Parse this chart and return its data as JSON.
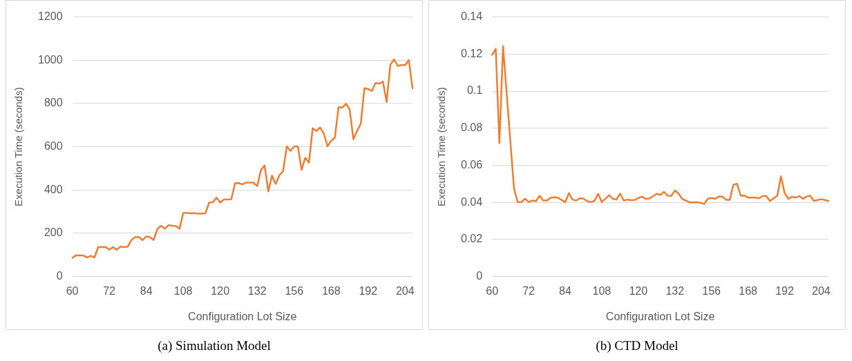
{
  "chart_data": [
    {
      "type": "line",
      "xlabel": "Configuration Lot Size",
      "ylabel": "Execution Time (seconds)",
      "annotations": [
        "(a)  Simulation Model"
      ],
      "categories": [
        "60",
        null,
        null,
        null,
        null,
        null,
        null,
        null,
        null,
        null,
        "72",
        null,
        null,
        null,
        null,
        null,
        null,
        null,
        null,
        null,
        "84",
        null,
        null,
        null,
        null,
        null,
        null,
        null,
        null,
        null,
        "108",
        null,
        null,
        null,
        null,
        null,
        null,
        null,
        null,
        null,
        "120",
        null,
        null,
        null,
        null,
        null,
        null,
        null,
        null,
        null,
        "132",
        null,
        null,
        null,
        null,
        null,
        null,
        null,
        null,
        null,
        "156",
        null,
        null,
        null,
        null,
        null,
        null,
        null,
        null,
        null,
        "168",
        null,
        null,
        null,
        null,
        null,
        null,
        null,
        null,
        null,
        "192",
        null,
        null,
        null,
        null,
        null,
        null,
        null,
        null,
        null,
        "204",
        null,
        null
      ],
      "series": [
        {
          "color": "#ed7d31",
          "values": [
            86,
            98,
            98,
            97,
            88,
            96,
            88,
            136,
            136,
            137,
            124,
            136,
            124,
            138,
            136,
            138,
            169,
            182,
            183,
            168,
            185,
            182,
            169,
            219,
            235,
            221,
            237,
            235,
            233,
            221,
            294,
            294,
            292,
            293,
            291,
            291,
            292,
            342,
            343,
            365,
            342,
            356,
            356,
            357,
            431,
            432,
            426,
            434,
            434,
            434,
            418,
            492,
            514,
            394,
            466,
            428,
            468,
            487,
            602,
            581,
            601,
            601,
            493,
            549,
            527,
            686,
            673,
            689,
            661,
            602,
            627,
            642,
            783,
            781,
            799,
            773,
            635,
            672,
            706,
            871,
            867,
            858,
            895,
            892,
            902,
            807,
            979,
            1004,
            974,
            978,
            978,
            1001,
            870
          ]
        }
      ],
      "ylim": [
        0,
        1200
      ],
      "yticks": [
        0,
        200,
        400,
        600,
        800,
        1000,
        1200
      ],
      "grid": "y",
      "legend": false,
      "marker": "none",
      "line_style": "solid"
    },
    {
      "type": "line",
      "xlabel": "Configuration Lot Size",
      "ylabel": "Execution Time (seconds)",
      "annotations": [
        "(b)  CTD Model"
      ],
      "categories": [
        "60",
        null,
        null,
        null,
        null,
        null,
        null,
        null,
        null,
        null,
        "72",
        null,
        null,
        null,
        null,
        null,
        null,
        null,
        null,
        null,
        "84",
        null,
        null,
        null,
        null,
        null,
        null,
        null,
        null,
        null,
        "108",
        null,
        null,
        null,
        null,
        null,
        null,
        null,
        null,
        null,
        "120",
        null,
        null,
        null,
        null,
        null,
        null,
        null,
        null,
        null,
        "132",
        null,
        null,
        null,
        null,
        null,
        null,
        null,
        null,
        null,
        "156",
        null,
        null,
        null,
        null,
        null,
        null,
        null,
        null,
        null,
        "168",
        null,
        null,
        null,
        null,
        null,
        null,
        null,
        null,
        null,
        "192",
        null,
        null,
        null,
        null,
        null,
        null,
        null,
        null,
        null,
        "204",
        null,
        null
      ],
      "series": [
        {
          "color": "#ed7d31",
          "values": [
            0.1196,
            0.1228,
            0.072,
            0.1242,
            0.0985,
            0.0729,
            0.0474,
            0.0402,
            0.0402,
            0.042,
            0.0402,
            0.041,
            0.0406,
            0.0436,
            0.041,
            0.041,
            0.0425,
            0.0428,
            0.0425,
            0.0413,
            0.0401,
            0.045,
            0.0415,
            0.041,
            0.0422,
            0.042,
            0.0406,
            0.0402,
            0.0408,
            0.0446,
            0.0402,
            0.042,
            0.0439,
            0.0419,
            0.0415,
            0.0447,
            0.041,
            0.0415,
            0.0412,
            0.0413,
            0.0423,
            0.0431,
            0.0419,
            0.042,
            0.0433,
            0.0446,
            0.044,
            0.0457,
            0.0436,
            0.0435,
            0.0464,
            0.0447,
            0.0418,
            0.041,
            0.04,
            0.04,
            0.0401,
            0.0398,
            0.0391,
            0.0419,
            0.0424,
            0.0419,
            0.0431,
            0.0431,
            0.0414,
            0.0414,
            0.0495,
            0.05,
            0.0436,
            0.0437,
            0.0426,
            0.0426,
            0.0426,
            0.0422,
            0.0434,
            0.0434,
            0.0407,
            0.0422,
            0.0436,
            0.054,
            0.0451,
            0.0419,
            0.0431,
            0.0425,
            0.0434,
            0.0419,
            0.0431,
            0.0436,
            0.0408,
            0.0413,
            0.0417,
            0.0413,
            0.0407
          ]
        }
      ],
      "ylim": [
        0,
        0.14
      ],
      "yticks": [
        0,
        0.02,
        0.04,
        0.06,
        0.08,
        0.1,
        0.12,
        0.14
      ],
      "grid": "y",
      "legend": false,
      "marker": "none",
      "line_style": "solid"
    }
  ]
}
